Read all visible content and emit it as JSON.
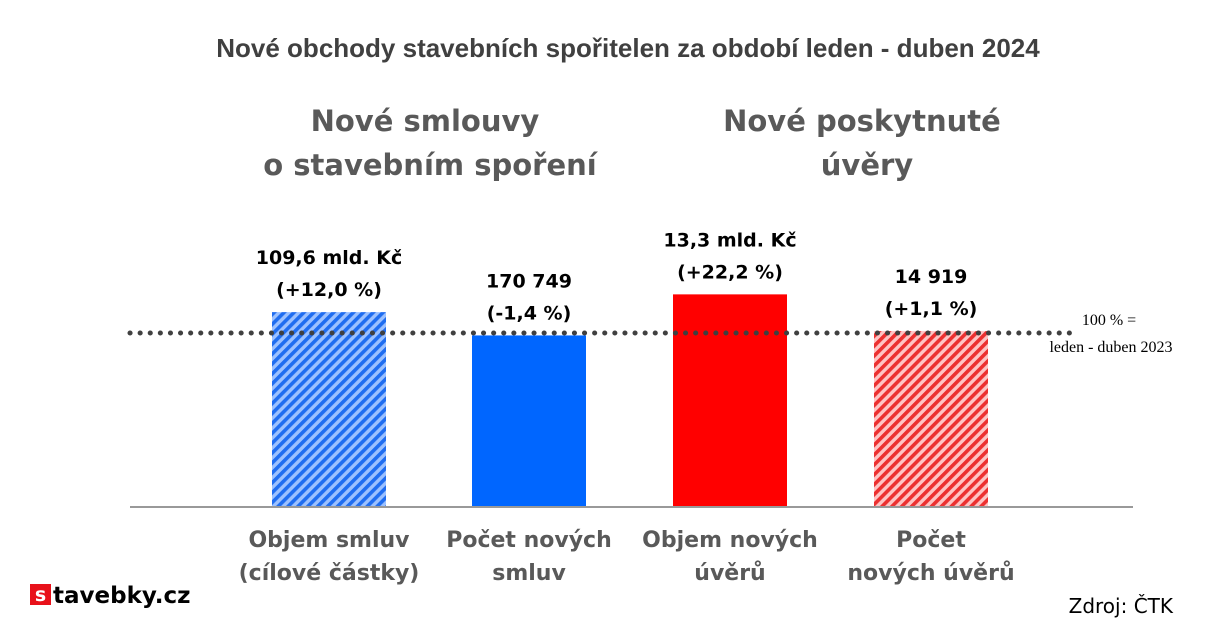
{
  "chart_data": {
    "type": "bar",
    "title": "Nové obchody stavebních spořitelen za období leden - duben 2024",
    "groups": [
      {
        "lines": [
          "Nové smlouvy",
          "o stavebním spoření"
        ]
      },
      {
        "lines": [
          "Nové poskytnuté",
          "úvěry"
        ]
      }
    ],
    "categories": [
      {
        "lines": [
          "Objem smluv",
          "(cílové částky)"
        ]
      },
      {
        "lines": [
          "Počet  nových",
          "smluv"
        ]
      },
      {
        "lines": [
          "Objem nových",
          "úvěrů"
        ]
      },
      {
        "lines": [
          "Počet",
          "nových úvěrů"
        ]
      }
    ],
    "values": [
      112.0,
      98.6,
      122.2,
      101.1
    ],
    "value_unit": "% of leden - duben 2023",
    "data_labels": [
      [
        "109,6 mld. Kč",
        "(+12,0 %)"
      ],
      [
        "170 749",
        "(-1,4 %)"
      ],
      [
        "13,3 mld. Kč",
        "(+22,2 %)"
      ],
      [
        "14 919",
        "(+1,1 %)"
      ]
    ],
    "bar_colors": [
      "#4a8cf0",
      "#0066ff",
      "#ff0000",
      "#f04545"
    ],
    "bar_patterns": [
      "hatched",
      "solid",
      "solid",
      "hatched"
    ],
    "reference_line": {
      "value": 100,
      "label_lines": [
        "100 % =",
        "leden - duben 2023"
      ],
      "style": "dotted",
      "color": "#404040"
    },
    "ylim": [
      0,
      150
    ],
    "grid": false,
    "legend": "none",
    "source": "Zdroj: ČTK"
  },
  "logo": {
    "mark": "s",
    "text": "tavebky.cz",
    "mark_color": "#e8111a"
  }
}
